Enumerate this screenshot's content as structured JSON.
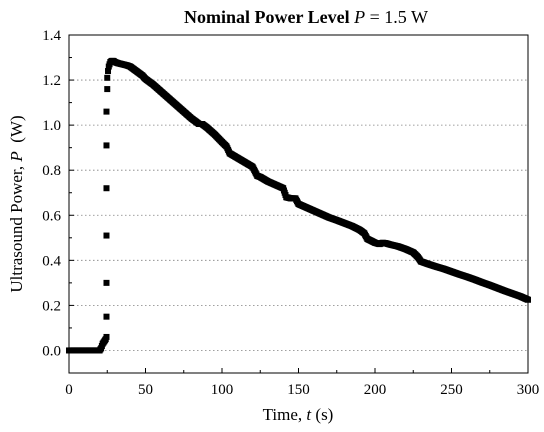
{
  "chart_data": {
    "type": "scatter",
    "title_prefix": "Nominal Power Level ",
    "title_symbol": "P",
    "title_suffix": " = 1.5 W",
    "xlabel_prefix": "Time, ",
    "xlabel_symbol": "t",
    "xlabel_suffix": " (s)",
    "ylabel_prefix": "Ultrasound Power, ",
    "ylabel_symbol": "P",
    "ylabel_suffix": "  (W)",
    "xlim": [
      0,
      300
    ],
    "ylim": [
      -0.1,
      1.4
    ],
    "xticks": [
      "0",
      "50",
      "100",
      "150",
      "200",
      "250",
      "300"
    ],
    "yticks": [
      "0.0",
      "0.2",
      "0.4",
      "0.6",
      "0.8",
      "1.0",
      "1.2",
      "1.4"
    ],
    "grid": "horizontal dotted",
    "marker": "square",
    "color": "#000000",
    "series": [
      {
        "points": [
          [
            0,
            0.0
          ],
          [
            2,
            0.0
          ],
          [
            4,
            0.0
          ],
          [
            6,
            0.0
          ],
          [
            8,
            0.0
          ],
          [
            10,
            0.0
          ],
          [
            12,
            0.0
          ],
          [
            14,
            0.0
          ],
          [
            16,
            0.0
          ],
          [
            18,
            0.0
          ],
          [
            20,
            0.0
          ],
          [
            21,
            0.01
          ],
          [
            22,
            0.03
          ],
          [
            23,
            0.04
          ],
          [
            24,
            0.05
          ],
          [
            24.5,
            0.06
          ],
          [
            24.5,
            0.15
          ],
          [
            24.5,
            0.3
          ],
          [
            24.5,
            0.51
          ],
          [
            24.5,
            0.72
          ],
          [
            24.5,
            0.91
          ],
          [
            24.5,
            1.06
          ],
          [
            25,
            1.16
          ],
          [
            25,
            1.21
          ],
          [
            25.5,
            1.24
          ],
          [
            26,
            1.26
          ],
          [
            27,
            1.28
          ],
          [
            28,
            1.285
          ],
          [
            29,
            1.285
          ],
          [
            30,
            1.28
          ],
          [
            32,
            1.275
          ],
          [
            35,
            1.27
          ],
          [
            38,
            1.265
          ],
          [
            40,
            1.26
          ],
          [
            42,
            1.25
          ],
          [
            45,
            1.235
          ],
          [
            48,
            1.22
          ],
          [
            50,
            1.205
          ],
          [
            55,
            1.18
          ],
          [
            60,
            1.15
          ],
          [
            65,
            1.12
          ],
          [
            70,
            1.09
          ],
          [
            75,
            1.06
          ],
          [
            80,
            1.03
          ],
          [
            85,
            1.005
          ],
          [
            87,
            1.005
          ],
          [
            90,
            0.99
          ],
          [
            95,
            0.96
          ],
          [
            100,
            0.925
          ],
          [
            103,
            0.905
          ],
          [
            105,
            0.875
          ],
          [
            110,
            0.855
          ],
          [
            115,
            0.835
          ],
          [
            120,
            0.815
          ],
          [
            123,
            0.775
          ],
          [
            125,
            0.77
          ],
          [
            130,
            0.75
          ],
          [
            135,
            0.735
          ],
          [
            140,
            0.72
          ],
          [
            142,
            0.68
          ],
          [
            145,
            0.675
          ],
          [
            148,
            0.675
          ],
          [
            150,
            0.65
          ],
          [
            155,
            0.635
          ],
          [
            160,
            0.62
          ],
          [
            165,
            0.605
          ],
          [
            170,
            0.59
          ],
          [
            175,
            0.578
          ],
          [
            180,
            0.565
          ],
          [
            185,
            0.552
          ],
          [
            190,
            0.535
          ],
          [
            193,
            0.52
          ],
          [
            195,
            0.495
          ],
          [
            198,
            0.485
          ],
          [
            200,
            0.478
          ],
          [
            203,
            0.472
          ],
          [
            205,
            0.478
          ],
          [
            207,
            0.476
          ],
          [
            210,
            0.47
          ],
          [
            215,
            0.462
          ],
          [
            220,
            0.45
          ],
          [
            225,
            0.435
          ],
          [
            228,
            0.415
          ],
          [
            230,
            0.395
          ],
          [
            235,
            0.383
          ],
          [
            240,
            0.372
          ],
          [
            245,
            0.362
          ],
          [
            250,
            0.35
          ],
          [
            255,
            0.338
          ],
          [
            260,
            0.327
          ],
          [
            265,
            0.315
          ],
          [
            270,
            0.302
          ],
          [
            275,
            0.29
          ],
          [
            280,
            0.277
          ],
          [
            285,
            0.264
          ],
          [
            290,
            0.252
          ],
          [
            295,
            0.24
          ],
          [
            300,
            0.225
          ]
        ]
      }
    ]
  }
}
